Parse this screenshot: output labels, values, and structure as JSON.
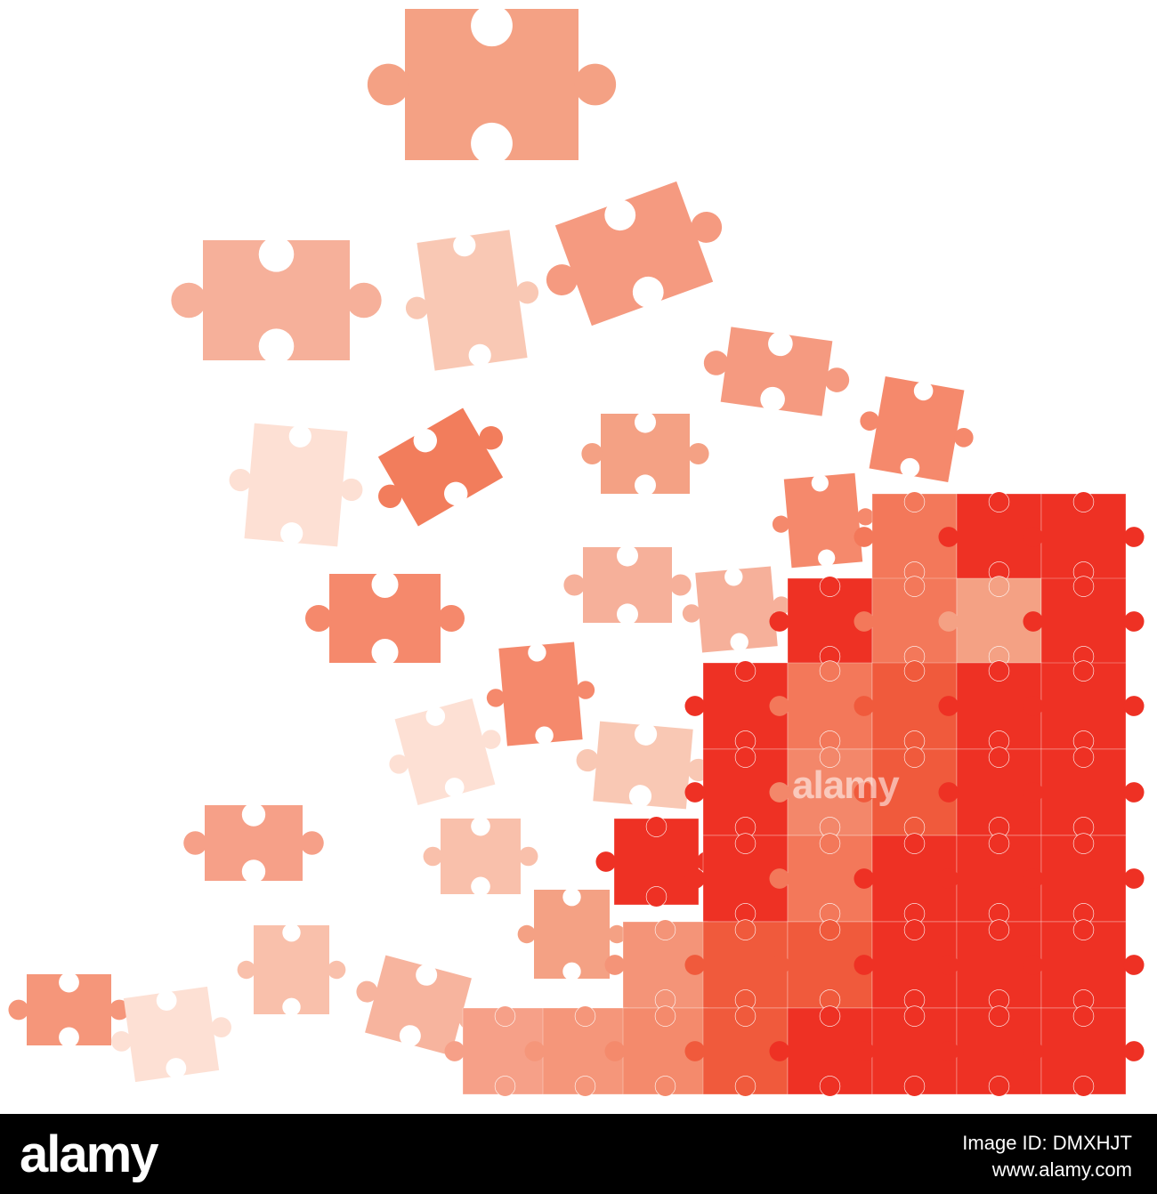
{
  "watermark": "alamy",
  "footer": {
    "logo": "alamy",
    "image_id": "Image ID: DMXHJT",
    "url": "www.alamy.com"
  }
}
